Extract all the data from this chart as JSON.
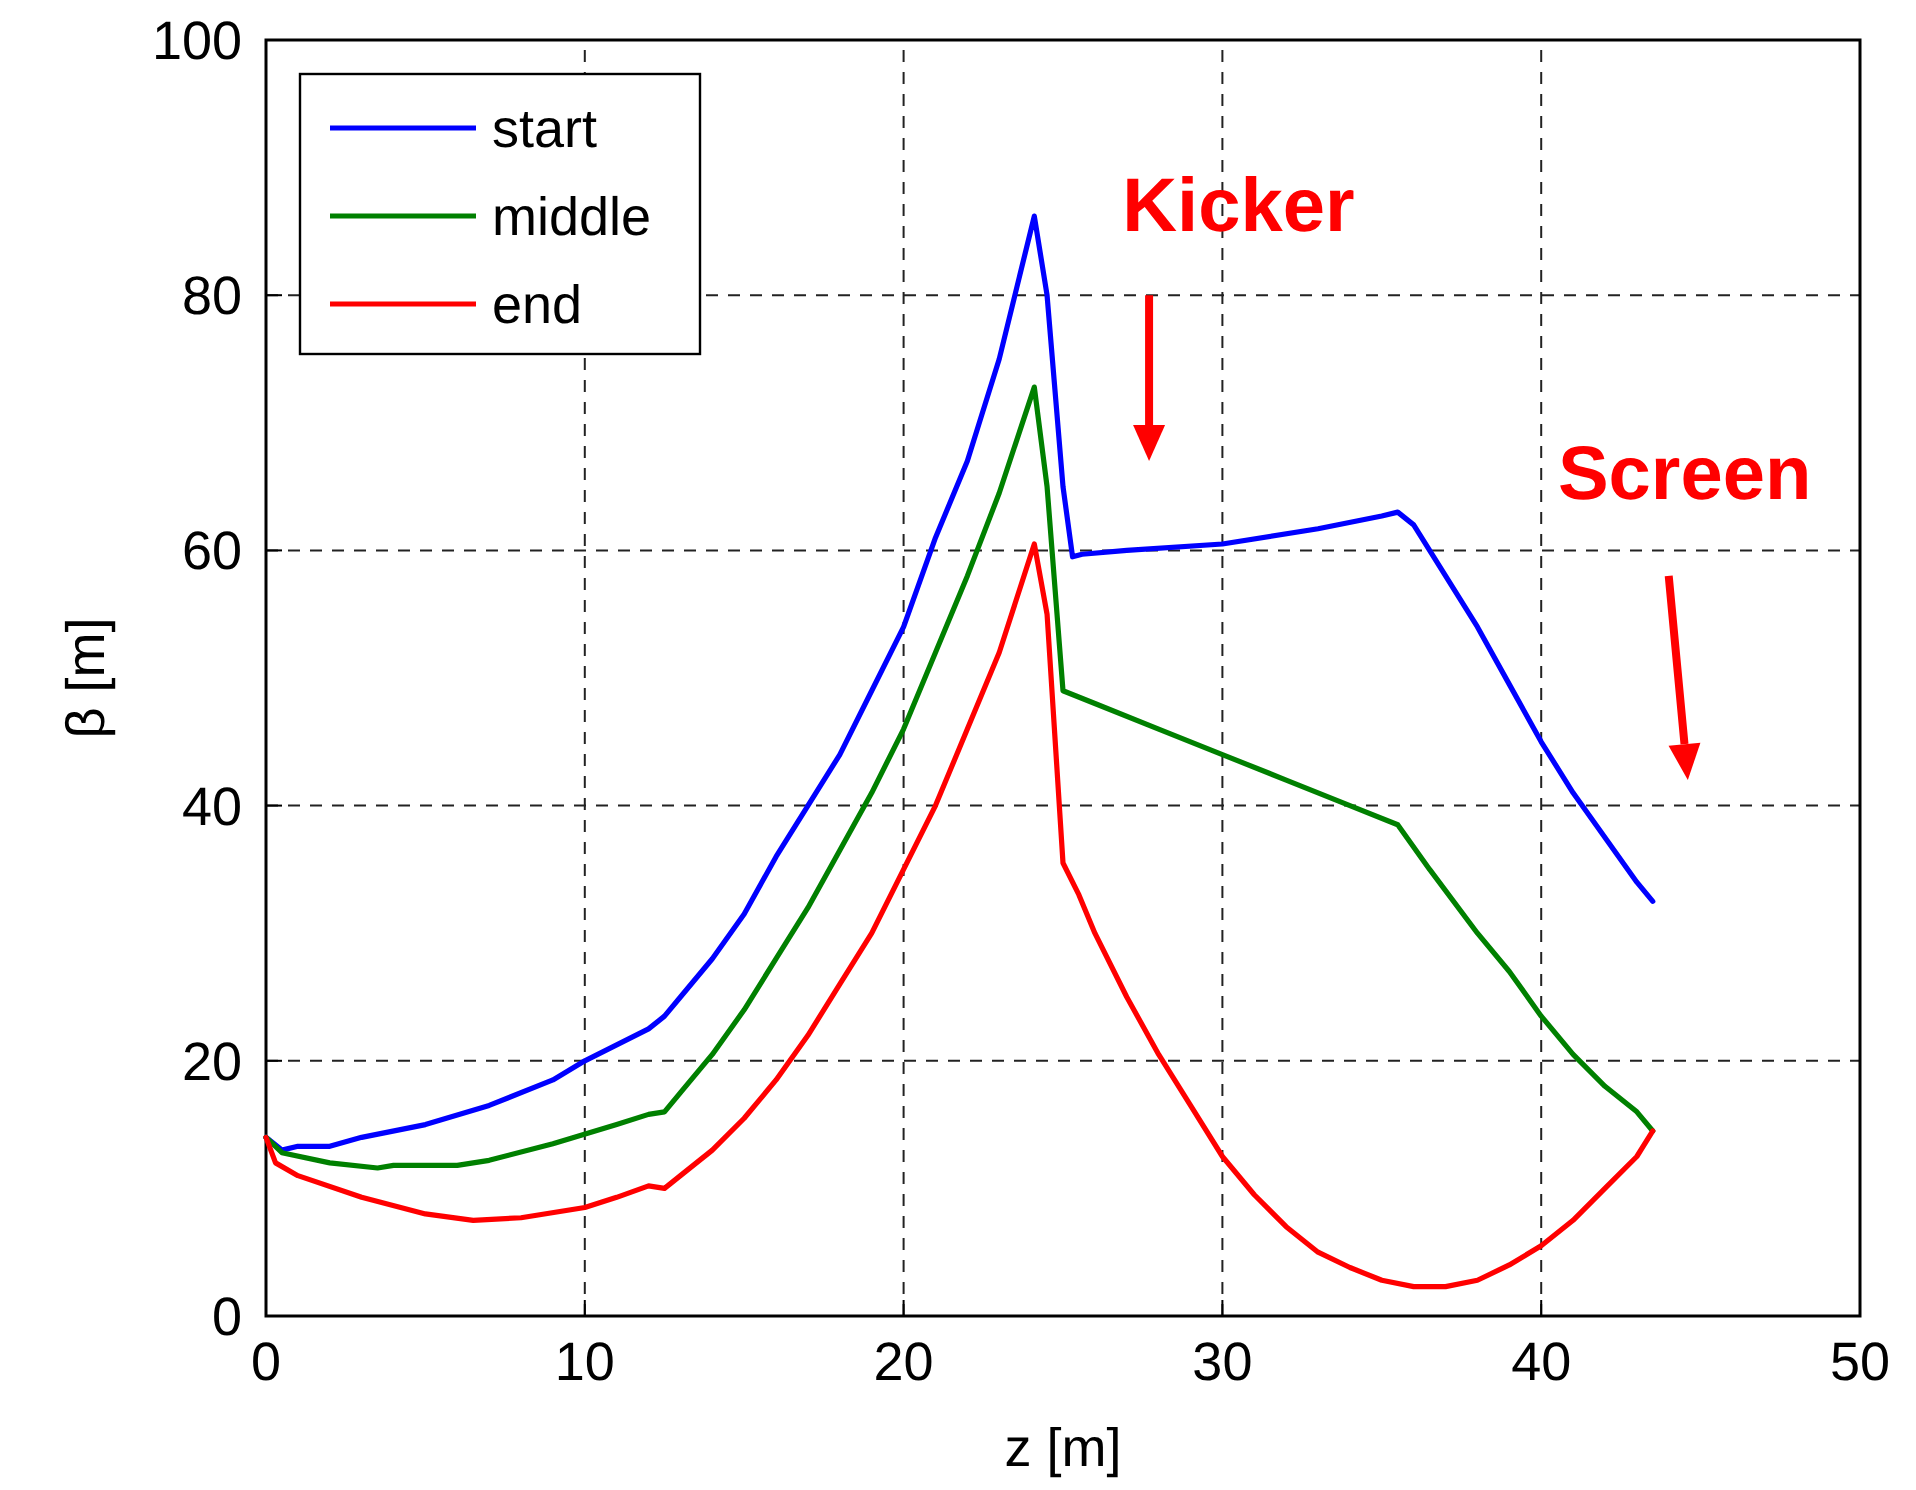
{
  "chart_data": {
    "type": "line",
    "xlabel": "z [m]",
    "ylabel": "β [m]",
    "xlim": [
      0,
      50
    ],
    "xticks": [
      0,
      10,
      20,
      30,
      40,
      50
    ],
    "ylim": [
      0,
      100
    ],
    "yticks": [
      0,
      20,
      40,
      60,
      80,
      100
    ],
    "grid": true,
    "legend": "top left",
    "line_style": "solid",
    "annotations": [
      "Kicker",
      "Screen"
    ],
    "series": [
      {
        "name": "start",
        "color": "#0000ff",
        "x": [
          0,
          0.5,
          1,
          2,
          3,
          5,
          7,
          9,
          10,
          12,
          12.5,
          13,
          14,
          15,
          16,
          17,
          18,
          19,
          20,
          21,
          22,
          23,
          24.1,
          24.5,
          25,
          25.3,
          25.6,
          27,
          30,
          33,
          35,
          35.5,
          36,
          37,
          38,
          39,
          40,
          41,
          42,
          43,
          43.5
        ],
        "values": [
          14,
          13,
          13.3,
          13.3,
          14,
          15,
          16.5,
          18.5,
          20,
          22.5,
          23.5,
          25,
          28,
          31.5,
          36,
          40,
          44,
          49,
          54,
          61,
          67,
          75,
          86.2,
          80,
          65,
          59.5,
          59.7,
          60,
          60.5,
          61.7,
          62.7,
          63,
          62,
          58,
          54,
          49.5,
          45,
          41,
          37.5,
          34,
          32.5
        ]
      },
      {
        "name": "middle",
        "color": "#008000",
        "x": [
          0,
          0.5,
          2,
          3.5,
          4,
          6,
          7,
          9,
          11,
          12,
          12.5,
          13,
          14,
          15,
          16,
          17,
          18,
          19,
          20,
          21,
          22,
          23,
          24.1,
          24.5,
          25,
          26,
          28,
          30,
          32,
          34,
          35.5,
          36.5,
          38,
          39,
          40,
          41,
          42,
          43,
          43.5
        ],
        "values": [
          14,
          12.8,
          12,
          11.6,
          11.8,
          11.8,
          12.2,
          13.5,
          15,
          15.8,
          16,
          17.5,
          20.5,
          24,
          28,
          32,
          36.5,
          41,
          46,
          52,
          58,
          64.5,
          72.8,
          65,
          49,
          48,
          46,
          44,
          42,
          40,
          38.5,
          35,
          30,
          27,
          23.5,
          20.5,
          18,
          16,
          14.5
        ]
      },
      {
        "name": "end",
        "color": "#ff0000",
        "x": [
          0,
          0.3,
          1,
          3,
          5,
          6.5,
          8,
          10,
          11,
          12,
          12.5,
          13,
          14,
          15,
          16,
          17,
          18,
          19,
          20,
          21,
          22,
          23,
          24.1,
          24.5,
          25,
          25.5,
          26,
          27,
          28,
          29,
          30,
          31,
          32,
          33,
          34,
          35,
          36,
          37,
          38,
          39,
          40,
          41,
          42,
          43,
          43.5
        ],
        "values": [
          14,
          12,
          11,
          9.3,
          8,
          7.5,
          7.7,
          8.5,
          9.3,
          10.2,
          10,
          11,
          13,
          15.5,
          18.5,
          22,
          26,
          30,
          35,
          40,
          46,
          52,
          60.5,
          55,
          35.5,
          33,
          30,
          25,
          20.5,
          16.5,
          12.5,
          9.5,
          7,
          5,
          3.8,
          2.8,
          2.3,
          2.3,
          2.8,
          4,
          5.5,
          7.5,
          10,
          12.5,
          14.5
        ]
      }
    ]
  }
}
